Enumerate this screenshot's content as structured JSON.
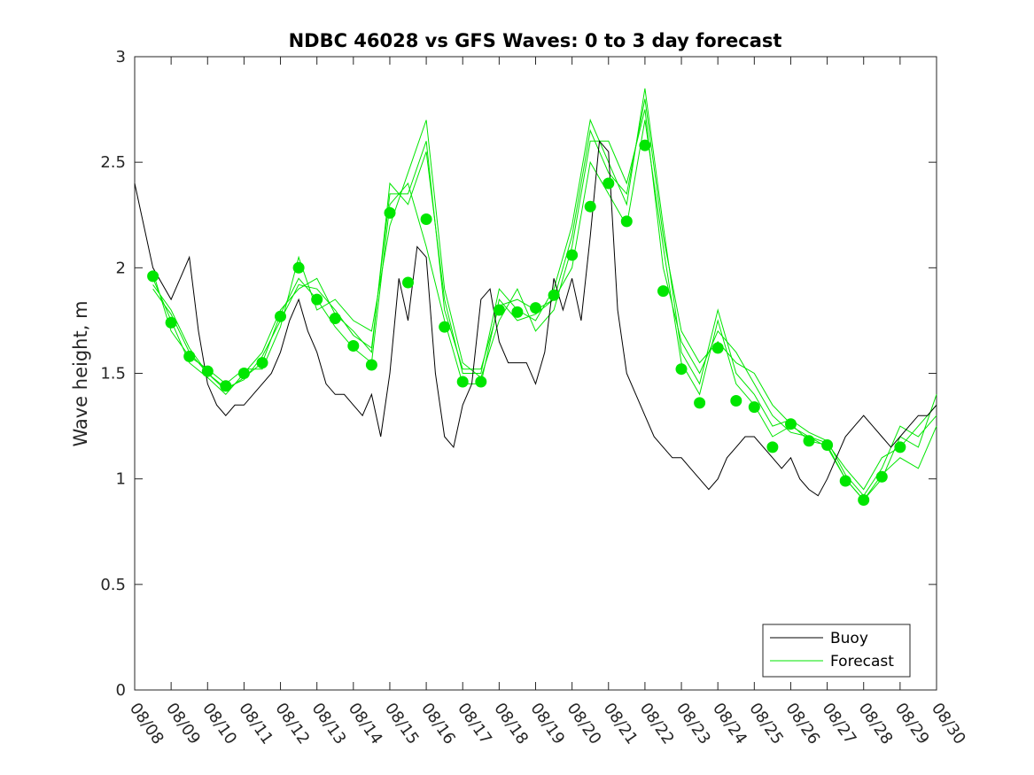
{
  "chart_data": {
    "type": "line",
    "title": "NDBC 46028 vs GFS Waves: 0 to 3 day forecast",
    "xlabel": "",
    "ylabel": "Wave height, m",
    "xlim": [
      0,
      22
    ],
    "ylim": [
      0,
      3
    ],
    "x_unit": "days since 08/08",
    "yticks": [
      0,
      0.5,
      1,
      1.5,
      2,
      2.5,
      3
    ],
    "ytick_labels": [
      "0",
      "0.5",
      "1",
      "1.5",
      "2",
      "2.5",
      "3"
    ],
    "xticks": [
      0,
      1,
      2,
      3,
      4,
      5,
      6,
      7,
      8,
      9,
      10,
      11,
      12,
      13,
      14,
      15,
      16,
      17,
      18,
      19,
      20,
      21,
      22
    ],
    "xtick_labels": [
      "08/08",
      "08/09",
      "08/10",
      "08/11",
      "08/12",
      "08/13",
      "08/14",
      "08/15",
      "08/16",
      "08/17",
      "08/18",
      "08/19",
      "08/20",
      "08/21",
      "08/22",
      "08/23",
      "08/24",
      "08/25",
      "08/26",
      "08/27",
      "08/28",
      "08/29",
      "08/30"
    ],
    "legend": {
      "position": "bottom-right",
      "entries": [
        "Buoy",
        "Forecast"
      ]
    },
    "colors": {
      "buoy": "#000000",
      "forecast": "#00e600",
      "axes": "#262626"
    },
    "series": [
      {
        "name": "Buoy",
        "x": [
          0,
          0.5,
          1,
          1.25,
          1.5,
          1.75,
          2,
          2.25,
          2.5,
          2.75,
          3,
          3.25,
          3.5,
          3.75,
          4,
          4.25,
          4.5,
          4.75,
          5,
          5.25,
          5.5,
          5.75,
          6,
          6.25,
          6.5,
          6.75,
          7,
          7.25,
          7.5,
          7.75,
          8,
          8.25,
          8.5,
          8.75,
          9,
          9.25,
          9.5,
          9.75,
          10,
          10.25,
          10.5,
          10.75,
          11,
          11.25,
          11.5,
          11.75,
          12,
          12.25,
          12.5,
          12.75,
          13,
          13.25,
          13.5,
          13.75,
          14,
          14.25,
          14.5,
          14.75,
          15,
          15.25,
          15.5,
          15.75,
          16,
          16.25,
          16.5,
          16.75,
          17,
          17.25,
          17.5,
          17.75,
          18,
          18.25,
          18.5,
          18.75,
          19,
          19.25,
          19.5,
          19.75,
          20,
          20.25,
          20.5,
          20.75,
          21,
          21.25,
          21.5,
          21.75,
          22
        ],
        "values": [
          2.4,
          2.0,
          1.85,
          1.95,
          2.05,
          1.7,
          1.45,
          1.35,
          1.3,
          1.35,
          1.35,
          1.4,
          1.45,
          1.5,
          1.6,
          1.75,
          1.85,
          1.7,
          1.6,
          1.45,
          1.4,
          1.4,
          1.35,
          1.3,
          1.4,
          1.2,
          1.5,
          1.95,
          1.75,
          2.1,
          2.05,
          1.5,
          1.2,
          1.15,
          1.35,
          1.45,
          1.85,
          1.9,
          1.65,
          1.55,
          1.55,
          1.55,
          1.45,
          1.6,
          1.95,
          1.8,
          1.95,
          1.75,
          2.15,
          2.6,
          2.55,
          1.8,
          1.5,
          1.4,
          1.3,
          1.2,
          1.15,
          1.1,
          1.1,
          1.05,
          1.0,
          0.95,
          1.0,
          1.1,
          1.15,
          1.2,
          1.2,
          1.15,
          1.1,
          1.05,
          1.1,
          1.0,
          0.95,
          0.92,
          1.0,
          1.1,
          1.2,
          1.25,
          1.3,
          1.25,
          1.2,
          1.15,
          1.2,
          1.25,
          1.3,
          1.3,
          1.35
        ]
      },
      {
        "name": "Forecast",
        "x": [
          0.5,
          1.0,
          1.5,
          2.0,
          2.5,
          3.0,
          3.5,
          4.0,
          4.5,
          5.0,
          5.5,
          6.0,
          6.5,
          7.0,
          7.5,
          8.0,
          8.5,
          9.0,
          9.5,
          10.0,
          10.5,
          11.0,
          11.5,
          12.0,
          12.5,
          13.0,
          13.5,
          14.0,
          14.5,
          15.0,
          15.5,
          16.0,
          16.5,
          17.0,
          17.5,
          18.0,
          18.5,
          19.0,
          19.5,
          20.0,
          20.5,
          21.0
        ],
        "values": [
          1.96,
          1.74,
          1.58,
          1.51,
          1.44,
          1.5,
          1.55,
          1.77,
          2.0,
          1.85,
          1.76,
          1.63,
          1.54,
          2.26,
          1.93,
          2.23,
          1.72,
          1.46,
          1.46,
          1.8,
          1.79,
          1.81,
          1.87,
          2.06,
          2.29,
          2.4,
          2.22,
          2.58,
          1.89,
          1.52,
          1.36,
          1.62,
          1.37,
          1.34,
          1.15,
          1.26,
          1.18,
          1.16,
          0.99,
          0.9,
          1.01,
          1.15
        ]
      }
    ],
    "forecast_runs": [
      {
        "name": "run-1",
        "x": [
          0.5,
          1.0,
          1.5,
          2.0,
          2.5,
          3.0,
          3.5,
          4.0,
          4.5,
          5.0,
          5.5,
          6.0,
          6.5,
          7.0,
          7.5,
          8.0,
          8.5,
          9.0,
          9.5,
          10.0,
          10.5,
          11.0,
          11.5,
          12.0,
          12.5,
          13.0,
          13.5,
          14.0,
          14.5,
          15.0,
          15.5,
          16.0,
          16.5,
          17.0,
          17.5,
          18.0,
          18.5,
          19.0,
          19.5,
          20.0,
          20.5,
          21.0,
          21.5,
          22.0
        ],
        "values": [
          1.9,
          1.78,
          1.6,
          1.5,
          1.42,
          1.48,
          1.55,
          1.78,
          1.95,
          1.85,
          1.72,
          1.62,
          1.55,
          2.3,
          2.4,
          2.1,
          1.75,
          1.45,
          1.45,
          1.85,
          1.75,
          1.78,
          1.85,
          2.0,
          2.5,
          2.35,
          2.2,
          2.7,
          2.1,
          1.55,
          1.4,
          1.75,
          1.45,
          1.35,
          1.2,
          1.25,
          1.2,
          1.15,
          1.0,
          0.9,
          1.0,
          1.2,
          1.15,
          1.4
        ]
      },
      {
        "name": "run-2",
        "x": [
          0.5,
          1.0,
          1.5,
          2.0,
          2.5,
          3.0,
          3.5,
          4.0,
          4.5,
          5.0,
          5.5,
          6.0,
          6.5,
          7.0,
          7.5,
          8.0,
          8.5,
          9.0,
          9.5,
          10.0,
          10.5,
          11.0,
          11.5,
          12.0,
          12.5,
          13.0,
          13.5,
          14.0,
          14.5,
          15.0,
          15.5,
          16.0,
          16.5,
          17.0,
          17.5,
          18.0,
          18.5,
          19.0,
          19.5,
          20.0,
          20.5,
          21.0,
          21.5,
          22.0
        ],
        "values": [
          1.95,
          1.75,
          1.55,
          1.48,
          1.4,
          1.5,
          1.6,
          1.8,
          1.9,
          1.95,
          1.78,
          1.7,
          1.6,
          2.4,
          2.3,
          2.55,
          1.85,
          1.5,
          1.5,
          1.9,
          1.8,
          1.75,
          1.9,
          2.2,
          2.7,
          2.5,
          2.3,
          2.85,
          2.2,
          1.6,
          1.45,
          1.8,
          1.5,
          1.4,
          1.25,
          1.28,
          1.22,
          1.18,
          1.02,
          0.92,
          1.05,
          1.25,
          1.2,
          1.3
        ]
      },
      {
        "name": "run-3",
        "x": [
          0.5,
          1.0,
          1.5,
          2.0,
          2.5,
          3.0,
          3.5,
          4.0,
          4.5,
          5.0,
          5.5,
          6.0,
          6.5,
          7.0,
          7.5,
          8.0,
          8.5,
          9.0,
          9.5,
          10.0,
          10.5,
          11.0,
          11.5,
          12.0,
          12.5,
          13.0,
          13.5,
          14.0,
          14.5,
          15.0,
          15.5,
          16.0,
          16.5,
          17.0,
          17.5,
          18.0,
          18.5,
          19.0,
          19.5,
          20.0,
          20.5,
          21.0,
          21.5,
          22.0
        ],
        "values": [
          1.98,
          1.7,
          1.58,
          1.52,
          1.45,
          1.52,
          1.52,
          1.72,
          2.05,
          1.8,
          1.85,
          1.75,
          1.7,
          2.2,
          2.45,
          2.7,
          1.9,
          1.55,
          1.48,
          1.75,
          1.9,
          1.7,
          1.8,
          2.1,
          2.6,
          2.6,
          2.4,
          2.75,
          2.0,
          1.65,
          1.5,
          1.7,
          1.6,
          1.45,
          1.3,
          1.22,
          1.2,
          1.17,
          1.05,
          0.95,
          1.1,
          1.15,
          1.25,
          1.35
        ]
      },
      {
        "name": "run-4",
        "x": [
          0.5,
          1.0,
          1.5,
          2.0,
          2.5,
          3.0,
          3.5,
          4.0,
          4.5,
          5.0,
          5.5,
          6.0,
          6.5,
          7.0,
          7.5,
          8.0,
          8.5,
          9.0,
          9.5,
          10.0,
          10.5,
          11.0,
          11.5,
          12.0,
          12.5,
          13.0,
          13.5,
          14.0,
          14.5,
          15.0,
          15.5,
          16.0,
          16.5,
          17.0,
          17.5,
          18.0,
          18.5,
          19.0,
          19.5,
          20.0,
          20.5,
          21.0,
          21.5,
          22.0
        ],
        "values": [
          1.92,
          1.8,
          1.62,
          1.5,
          1.43,
          1.47,
          1.58,
          1.75,
          1.92,
          1.9,
          1.8,
          1.68,
          1.62,
          2.35,
          2.35,
          2.6,
          1.8,
          1.52,
          1.52,
          1.82,
          1.85,
          1.8,
          1.85,
          2.15,
          2.65,
          2.45,
          2.35,
          2.8,
          2.15,
          1.7,
          1.55,
          1.65,
          1.55,
          1.5,
          1.35,
          1.26,
          1.18,
          1.16,
          1.0,
          0.9,
          1.02,
          1.1,
          1.05,
          1.25
        ]
      }
    ]
  }
}
